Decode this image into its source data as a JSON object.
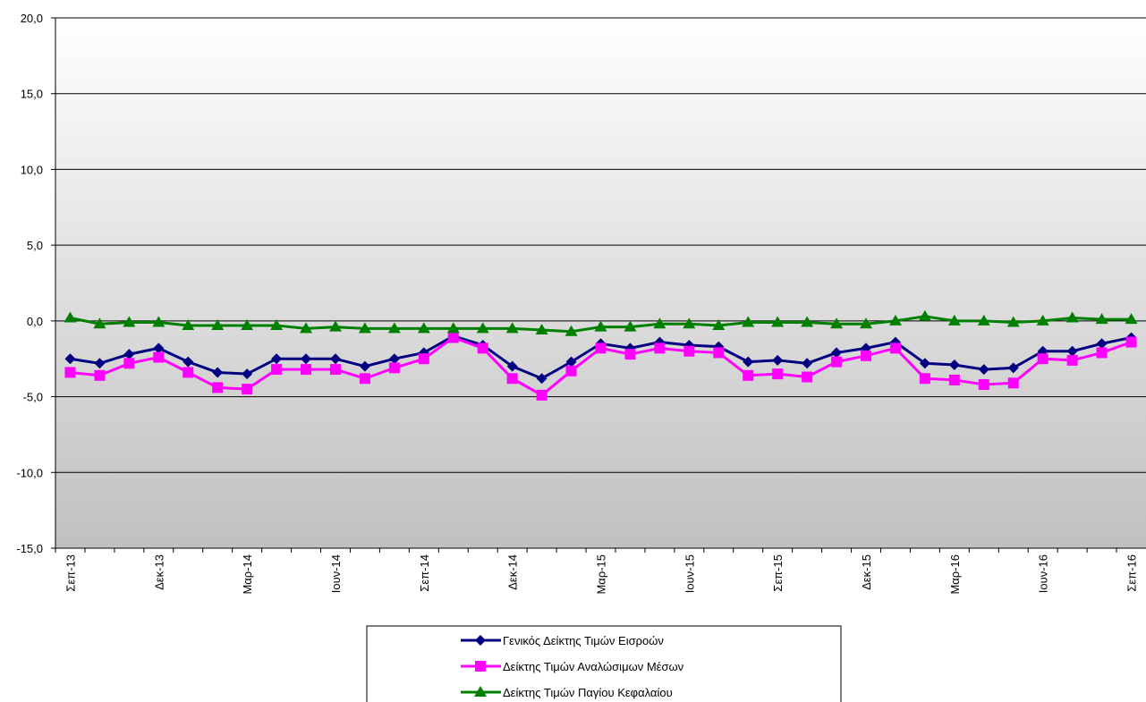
{
  "chart_data": {
    "type": "line",
    "categories": [
      "Σεπ-13",
      null,
      null,
      "Δεκ-13",
      null,
      null,
      "Μαρ-14",
      null,
      null,
      "Ιουν-14",
      null,
      null,
      "Σεπ-14",
      null,
      null,
      "Δεκ-14",
      null,
      null,
      "Μαρ-15",
      null,
      null,
      "Ιουν-15",
      null,
      null,
      "Σεπ-15",
      null,
      null,
      "Δεκ-15",
      null,
      null,
      "Μαρ-16",
      null,
      null,
      "Ιουν-16",
      null,
      null,
      "Σεπ-16"
    ],
    "series": [
      {
        "name": "Γενικός Δείκτης Τιμών Εισροών",
        "color": "#000080",
        "marker": "diamond",
        "values": [
          -2.5,
          -2.8,
          -2.2,
          -1.8,
          -2.7,
          -3.4,
          -3.5,
          -2.5,
          -2.5,
          -2.5,
          -3.0,
          -2.5,
          -2.1,
          -1.0,
          -1.6,
          -3.0,
          -3.8,
          -2.7,
          -1.5,
          -1.8,
          -1.4,
          -1.6,
          -1.7,
          -2.7,
          -2.6,
          -2.8,
          -2.1,
          -1.8,
          -1.4,
          -2.8,
          -2.9,
          -3.2,
          -3.1,
          -2.0,
          -2.0,
          -1.5,
          -1.1
        ]
      },
      {
        "name": "Δείκτης Τιμών Αναλώσιμων Μέσων",
        "color": "#ff00ff",
        "marker": "square",
        "values": [
          -3.4,
          -3.6,
          -2.8,
          -2.4,
          -3.4,
          -4.4,
          -4.5,
          -3.2,
          -3.2,
          -3.2,
          -3.8,
          -3.1,
          -2.5,
          -1.1,
          -1.8,
          -3.8,
          -4.9,
          -3.3,
          -1.8,
          -2.2,
          -1.8,
          -2.0,
          -2.1,
          -3.6,
          -3.5,
          -3.7,
          -2.7,
          -2.3,
          -1.8,
          -3.8,
          -3.9,
          -4.2,
          -4.1,
          -2.5,
          -2.6,
          -2.1,
          -1.4
        ]
      },
      {
        "name": "Δείκτης Τιμών Παγίου Κεφαλαίου",
        "color": "#008000",
        "marker": "triangle",
        "values": [
          0.2,
          -0.2,
          -0.1,
          -0.1,
          -0.3,
          -0.3,
          -0.3,
          -0.3,
          -0.5,
          -0.4,
          -0.5,
          -0.5,
          -0.5,
          -0.5,
          -0.5,
          -0.5,
          -0.6,
          -0.7,
          -0.4,
          -0.4,
          -0.2,
          -0.2,
          -0.3,
          -0.1,
          -0.1,
          -0.1,
          -0.2,
          -0.2,
          0.0,
          0.3,
          0.0,
          0.0,
          -0.1,
          0.0,
          0.2,
          0.1,
          0.1
        ]
      }
    ],
    "ylim": [
      -15,
      20
    ],
    "yticks": [
      {
        "value": -15,
        "label": "-15,0"
      },
      {
        "value": -10,
        "label": "-10,0"
      },
      {
        "value": -5,
        "label": "-5,0"
      },
      {
        "value": 0,
        "label": "0,0"
      },
      {
        "value": 5,
        "label": "5,0"
      },
      {
        "value": 10,
        "label": "10,0"
      },
      {
        "value": 15,
        "label": "15,0"
      },
      {
        "value": 20,
        "label": "20,0"
      }
    ],
    "grid": true
  }
}
